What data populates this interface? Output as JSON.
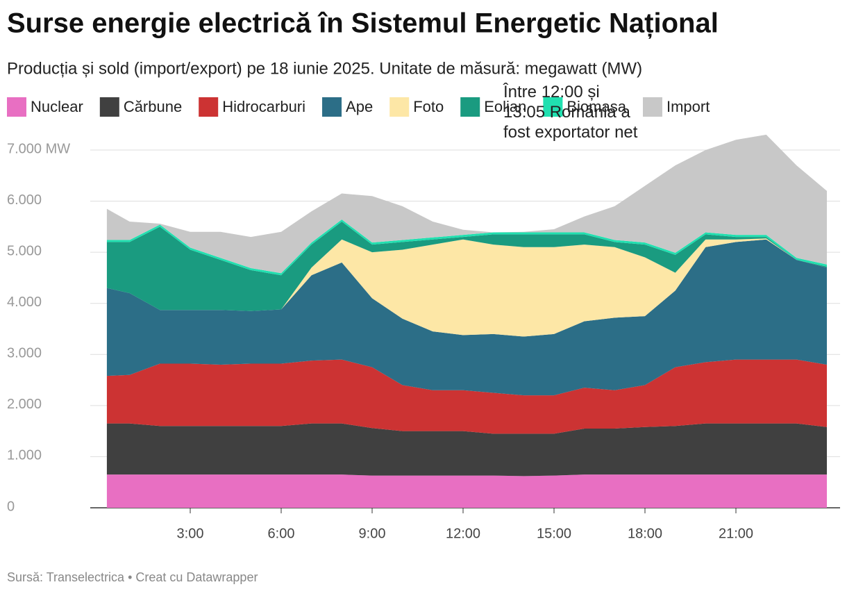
{
  "chart_data": {
    "type": "stacked_area",
    "title": "Surse energie electrică în Sistemul Energetic Național",
    "subtitle": "Producția și sold (import/export) pe 18 iunie 2025. Unitate de măsură: megawatt (MW)",
    "annotation": "Între 12:00 și 13:05 România a fost exportator net",
    "source": "Sursă: Transelectrica • Creat cu Datawrapper",
    "x": [
      0.25,
      1,
      2,
      3,
      4,
      5,
      6,
      7,
      8,
      9,
      10,
      11,
      12,
      13,
      14,
      15,
      16,
      17,
      18,
      19,
      20,
      21,
      22,
      23,
      24
    ],
    "series": [
      {
        "name": "Nuclear",
        "color": "#e86fc2",
        "values": [
          650,
          650,
          650,
          650,
          650,
          650,
          650,
          650,
          650,
          630,
          630,
          630,
          630,
          630,
          620,
          630,
          650,
          650,
          650,
          650,
          650,
          650,
          650,
          650,
          650
        ]
      },
      {
        "name": "Cărbune",
        "color": "#404040",
        "values": [
          1000,
          1000,
          950,
          950,
          950,
          950,
          950,
          1000,
          1000,
          930,
          870,
          870,
          870,
          820,
          830,
          820,
          900,
          900,
          930,
          950,
          1000,
          1000,
          1000,
          1000,
          930
        ]
      },
      {
        "name": "Hidrocarburi",
        "color": "#cc3333",
        "values": [
          930,
          950,
          1220,
          1220,
          1200,
          1220,
          1220,
          1230,
          1250,
          1190,
          900,
          800,
          800,
          800,
          750,
          750,
          800,
          750,
          820,
          1150,
          1200,
          1250,
          1250,
          1250,
          1220
        ]
      },
      {
        "name": "Ape",
        "color": "#2c6e87",
        "values": [
          1720,
          1600,
          1050,
          1050,
          1070,
          1030,
          1060,
          1670,
          1900,
          1350,
          1300,
          1150,
          1080,
          1150,
          1150,
          1200,
          1300,
          1420,
          1350,
          1500,
          2250,
          2300,
          2350,
          1950,
          1900
        ]
      },
      {
        "name": "Foto",
        "color": "#fde7a6",
        "values": [
          0,
          0,
          0,
          0,
          0,
          0,
          0,
          150,
          450,
          900,
          1350,
          1700,
          1870,
          1750,
          1750,
          1700,
          1500,
          1380,
          1150,
          350,
          150,
          50,
          20,
          0,
          0
        ]
      },
      {
        "name": "Eolian",
        "color": "#1a9b80",
        "values": [
          900,
          1000,
          1630,
          1180,
          980,
          800,
          670,
          450,
          350,
          150,
          150,
          100,
          50,
          200,
          250,
          250,
          200,
          100,
          250,
          350,
          100,
          50,
          30,
          0,
          20
        ]
      },
      {
        "name": "Biomasa",
        "color": "#20e0b0",
        "values": [
          40,
          40,
          40,
          40,
          40,
          40,
          40,
          40,
          40,
          40,
          40,
          40,
          40,
          40,
          40,
          40,
          40,
          40,
          40,
          40,
          40,
          40,
          40,
          40,
          40
        ]
      },
      {
        "name": "Import",
        "color": "#c8c8c8",
        "values": [
          610,
          360,
          20,
          310,
          510,
          610,
          810,
          610,
          510,
          910,
          660,
          310,
          100,
          0,
          10,
          60,
          310,
          660,
          1110,
          1710,
          1610,
          1860,
          1960,
          1810,
          1440
        ]
      }
    ],
    "xlim": [
      0,
      24
    ],
    "xticks": [
      {
        "value": 3,
        "label": "3:00"
      },
      {
        "value": 6,
        "label": "6:00"
      },
      {
        "value": 9,
        "label": "9:00"
      },
      {
        "value": 12,
        "label": "12:00"
      },
      {
        "value": 15,
        "label": "15:00"
      },
      {
        "value": 18,
        "label": "18:00"
      },
      {
        "value": 21,
        "label": "21:00"
      }
    ],
    "ylim": [
      0,
      7000
    ],
    "yticks": [
      0,
      {
        "value": 1000,
        "label": "1.000"
      },
      {
        "value": 2000,
        "label": "2.000"
      },
      {
        "value": 3000,
        "label": "3.000"
      },
      {
        "value": 4000,
        "label": "4.000"
      },
      {
        "value": 5000,
        "label": "5.000"
      },
      {
        "value": 6000,
        "label": "6.000"
      },
      {
        "value": 7000,
        "label": "7.000 MW"
      }
    ],
    "grid": true
  }
}
